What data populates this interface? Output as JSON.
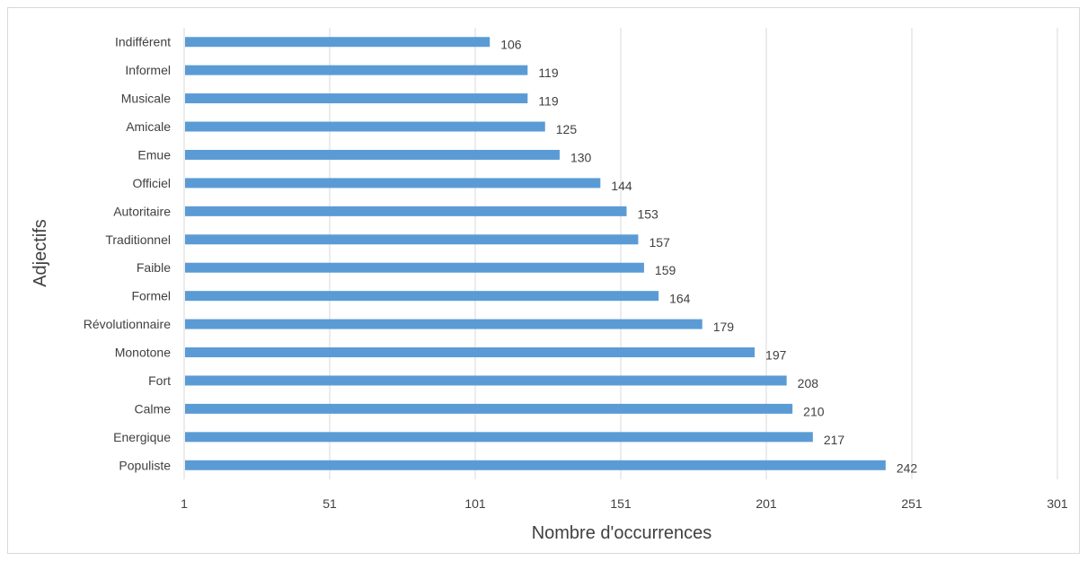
{
  "chart_data": {
    "type": "bar",
    "orientation": "horizontal",
    "categories": [
      "Indifférent",
      "Informel",
      "Musicale",
      "Amicale",
      "Emue",
      "Officiel",
      "Autoritaire",
      "Traditionnel",
      "Faible",
      "Formel",
      "Révolutionnaire",
      "Monotone",
      "Fort",
      "Calme",
      "Energique",
      "Populiste"
    ],
    "values": [
      106,
      119,
      119,
      125,
      130,
      144,
      153,
      157,
      159,
      164,
      179,
      197,
      208,
      210,
      217,
      242
    ],
    "xlabel": "Nombre d'occurrences",
    "ylabel": "Adjectifs",
    "xlim": [
      1,
      301
    ],
    "xticks": [
      "1",
      "51",
      "101",
      "151",
      "201",
      "251",
      "301"
    ],
    "bar_color": "#5b9bd5",
    "grid_color": "#d9d9d9",
    "grid": true,
    "legend": false
  }
}
